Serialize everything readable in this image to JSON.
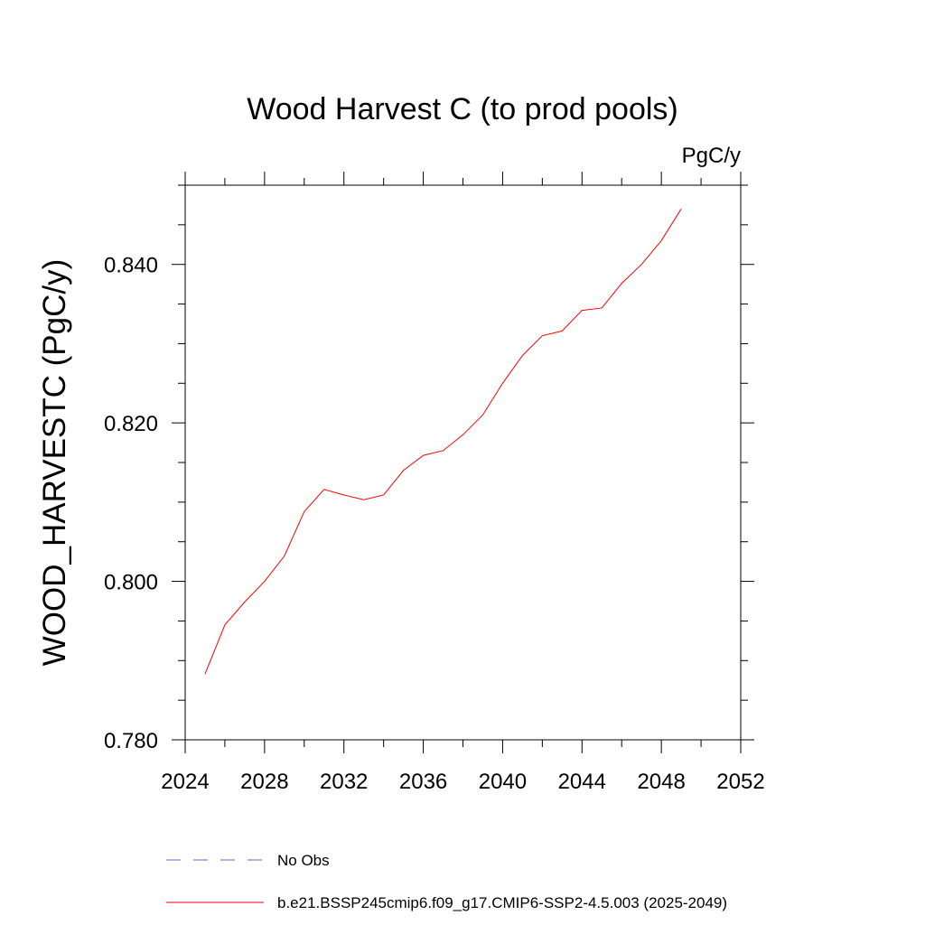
{
  "chart_data": {
    "type": "line",
    "title": "Wood Harvest C (to prod pools)",
    "units": "PgC/y",
    "xlabel": "",
    "ylabel": "WOOD_HARVESTC  (PgC/y)",
    "xlim": [
      2024,
      2052
    ],
    "ylim": [
      0.78,
      0.85
    ],
    "xticks": [
      2024,
      2028,
      2032,
      2036,
      2040,
      2044,
      2048,
      2052
    ],
    "xtick_labels": [
      "2024",
      "2028",
      "2032",
      "2036",
      "2040",
      "2044",
      "2048",
      "2052"
    ],
    "yticks": [
      0.78,
      0.8,
      0.82,
      0.84
    ],
    "ytick_labels": [
      "0.780",
      "0.800",
      "0.820",
      "0.840"
    ],
    "y_minor_step": 0.005,
    "x_minor_step": 2,
    "grid": false,
    "series": [
      {
        "name": "b.e21.BSSP245cmip6.f09_g17.CMIP6-SSP2-4.5.003 (2025-2049)",
        "color": "#ff0000",
        "style": "solid",
        "x": [
          2025,
          2026,
          2027,
          2028,
          2029,
          2030,
          2031,
          2032,
          2033,
          2034,
          2035,
          2036,
          2037,
          2038,
          2039,
          2040,
          2041,
          2042,
          2043,
          2044,
          2045,
          2046,
          2047,
          2048,
          2049
        ],
        "y": [
          0.7883,
          0.7945,
          0.7974,
          0.8,
          0.8032,
          0.8088,
          0.8116,
          0.8109,
          0.8103,
          0.8109,
          0.814,
          0.8159,
          0.8165,
          0.8185,
          0.821,
          0.825,
          0.8285,
          0.831,
          0.8316,
          0.8342,
          0.8345,
          0.8376,
          0.84,
          0.843,
          0.847
        ]
      }
    ],
    "legend": [
      {
        "label": "No Obs",
        "color": "#6666cc",
        "style": "dashed"
      },
      {
        "label": "b.e21.BSSP245cmip6.f09_g17.CMIP6-SSP2-4.5.003 (2025-2049)",
        "color": "#ff0000",
        "style": "solid"
      }
    ]
  }
}
